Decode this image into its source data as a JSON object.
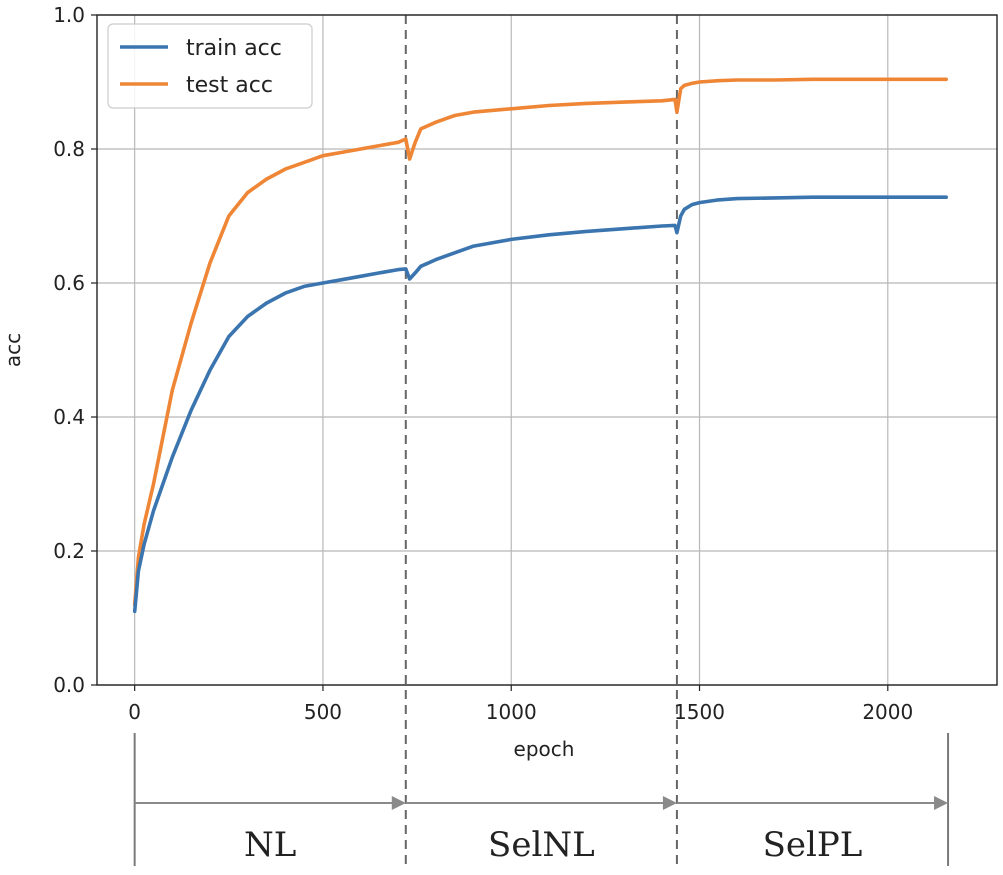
{
  "chart_data": {
    "type": "line",
    "xlabel": "epoch",
    "ylabel": "acc",
    "xlim": [
      -100,
      2290
    ],
    "ylim": [
      0.0,
      1.0
    ],
    "xticks": [
      0,
      500,
      1000,
      1500,
      2000
    ],
    "yticks": [
      0.0,
      0.2,
      0.4,
      0.6,
      0.8,
      1.0
    ],
    "xtick_labels": [
      "0",
      "500",
      "1000",
      "1500",
      "2000"
    ],
    "ytick_labels": [
      "0.0",
      "0.2",
      "0.4",
      "0.6",
      "0.8",
      "1.0"
    ],
    "grid": true,
    "legend_position": "top-left",
    "x": [
      0,
      10,
      25,
      50,
      75,
      100,
      150,
      200,
      250,
      300,
      350,
      400,
      450,
      500,
      550,
      600,
      650,
      700,
      720,
      730,
      745,
      760,
      800,
      850,
      900,
      1000,
      1100,
      1200,
      1300,
      1400,
      1435,
      1440,
      1450,
      1460,
      1480,
      1500,
      1550,
      1600,
      1700,
      1800,
      1900,
      2000,
      2100,
      2155
    ],
    "series": [
      {
        "name": "train acc",
        "color": "#3b75af",
        "values": [
          0.11,
          0.17,
          0.21,
          0.26,
          0.3,
          0.34,
          0.41,
          0.47,
          0.52,
          0.55,
          0.57,
          0.585,
          0.595,
          0.6,
          0.605,
          0.61,
          0.615,
          0.62,
          0.621,
          0.606,
          0.615,
          0.625,
          0.635,
          0.645,
          0.655,
          0.665,
          0.672,
          0.677,
          0.681,
          0.685,
          0.686,
          0.675,
          0.7,
          0.71,
          0.717,
          0.72,
          0.724,
          0.726,
          0.727,
          0.728,
          0.728,
          0.728,
          0.728,
          0.728
        ]
      },
      {
        "name": "test acc",
        "color": "#ef8636",
        "values": [
          0.12,
          0.19,
          0.24,
          0.3,
          0.37,
          0.44,
          0.54,
          0.63,
          0.7,
          0.735,
          0.755,
          0.77,
          0.78,
          0.79,
          0.795,
          0.8,
          0.805,
          0.81,
          0.815,
          0.785,
          0.81,
          0.83,
          0.84,
          0.85,
          0.855,
          0.86,
          0.865,
          0.868,
          0.87,
          0.872,
          0.874,
          0.855,
          0.89,
          0.895,
          0.898,
          0.9,
          0.902,
          0.903,
          0.903,
          0.904,
          0.904,
          0.904,
          0.904,
          0.904
        ]
      }
    ],
    "phase_boundaries": [
      720,
      1440
    ],
    "phases": [
      {
        "label": "NL",
        "start": 0,
        "end": 720
      },
      {
        "label": "SelNL",
        "start": 720,
        "end": 1440
      },
      {
        "label": "SelPL",
        "start": 1440,
        "end": 2160
      }
    ]
  }
}
